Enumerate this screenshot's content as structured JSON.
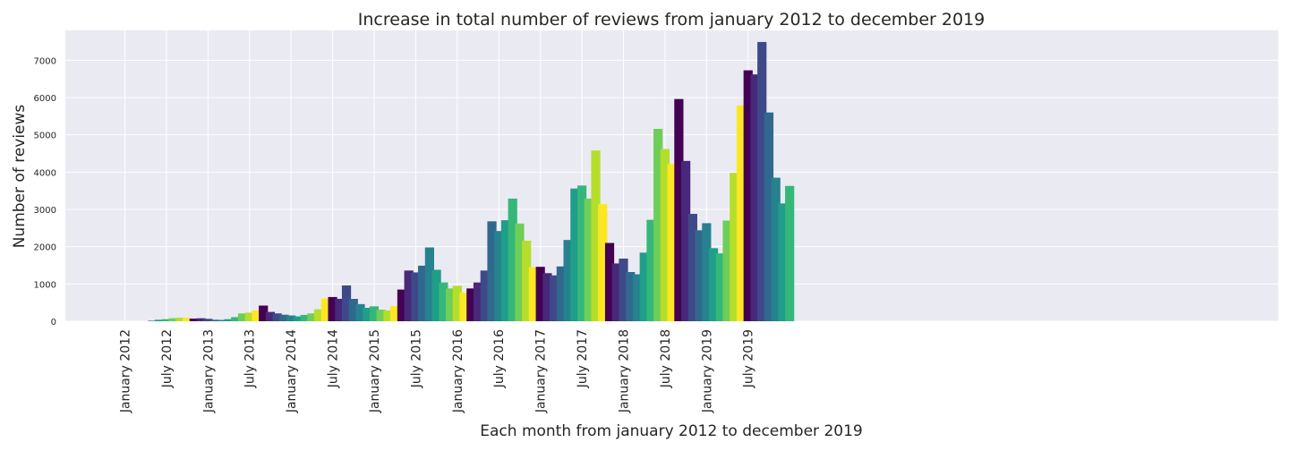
{
  "chart_data": {
    "type": "bar",
    "title": "Increase in total number of reviews from january 2012 to december 2019",
    "xlabel": "Each month from january 2012 to december 2019",
    "ylabel": "Number of reviews",
    "ylim": [
      0,
      7800
    ],
    "yticks": [
      0,
      1000,
      2000,
      3000,
      4000,
      5000,
      6000,
      7000
    ],
    "xtick_labels": [
      "January 2012",
      "July 2012",
      "January 2013",
      "July 2013",
      "January 2014",
      "July 2014",
      "January 2015",
      "July 2015",
      "January 2016",
      "July 2016",
      "January 2017",
      "July 2017",
      "January 2018",
      "July 2018",
      "January 2019",
      "July 2019"
    ],
    "grid": true,
    "background": "#eaeaf2",
    "month_colors": [
      "#440154",
      "#482878",
      "#3e4989",
      "#31688e",
      "#26828e",
      "#1f9e89",
      "#35b779",
      "#6ece58",
      "#b5de2b",
      "#fde725"
    ],
    "values": [
      0,
      0,
      0,
      0,
      15,
      40,
      55,
      80,
      95,
      90,
      70,
      80,
      65,
      40,
      35,
      55,
      110,
      210,
      230,
      290,
      420,
      250,
      210,
      175,
      155,
      130,
      170,
      210,
      320,
      610,
      650,
      600,
      960,
      600,
      460,
      360,
      400,
      310,
      290,
      410,
      850,
      1360,
      1310,
      1490,
      1980,
      1380,
      1040,
      880,
      950,
      770,
      880,
      1040,
      1360,
      2680,
      2420,
      2710,
      3290,
      2620,
      2160,
      1450,
      1460,
      1290,
      1230,
      1470,
      2180,
      3560,
      3640,
      3290,
      4580,
      3140,
      2100,
      1550,
      1680,
      1320,
      1260,
      1840,
      2720,
      5160,
      4620,
      4220,
      5960,
      4300,
      2880,
      2440,
      2630,
      1960,
      1820,
      2700,
      3980,
      5790,
      6730,
      6620,
      7490,
      5600,
      3850,
      3160,
      3630
    ]
  }
}
